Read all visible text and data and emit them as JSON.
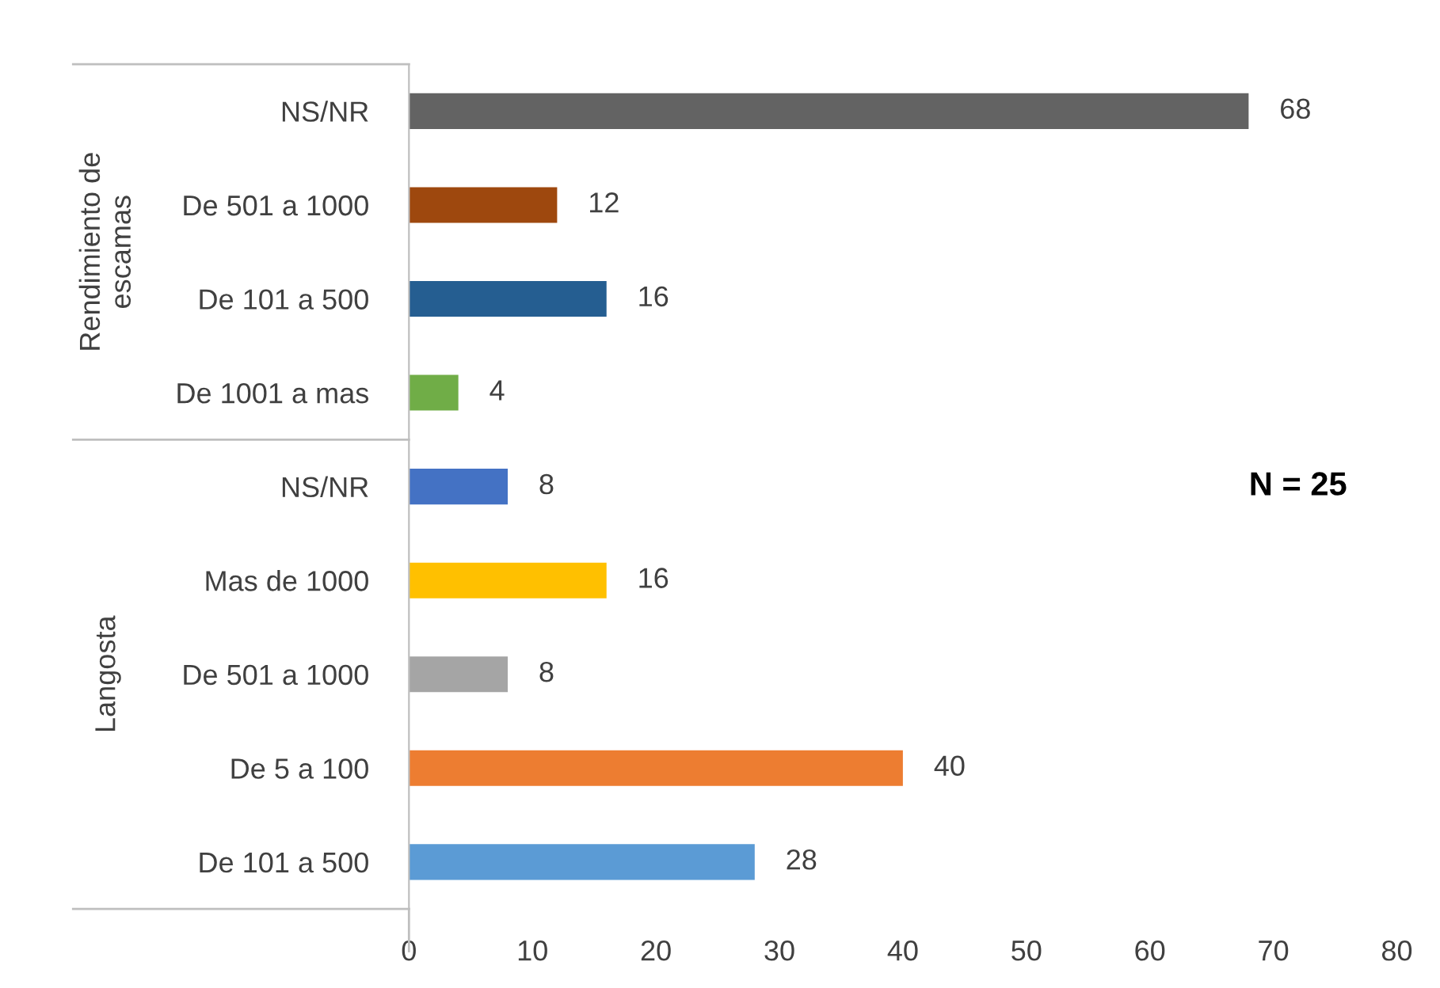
{
  "chart_data": {
    "type": "bar",
    "orientation": "horizontal",
    "categories": [
      "NS/NR",
      "De 501 a 1000",
      "De 101 a 500",
      "De 1001 a mas",
      "NS/NR",
      "Mas de 1000",
      "De 501 a 1000",
      "De 5 a 100",
      "De 101 a 500"
    ],
    "values": [
      68,
      12,
      16,
      4,
      8,
      16,
      8,
      40,
      28
    ],
    "colors": [
      "#636363",
      "#9e480e",
      "#255e91",
      "#70ad47",
      "#4472c4",
      "#ffc000",
      "#a5a5a5",
      "#ed7d31",
      "#5b9bd5"
    ],
    "xlim": [
      0,
      80
    ],
    "xticks": [
      0,
      10,
      20,
      30,
      40,
      50,
      60,
      70,
      80
    ],
    "data_labels": true,
    "grid": false,
    "legend": false,
    "annotations": [
      "Rendimiento de\nescamas",
      "Langosta",
      "N = 25"
    ]
  }
}
